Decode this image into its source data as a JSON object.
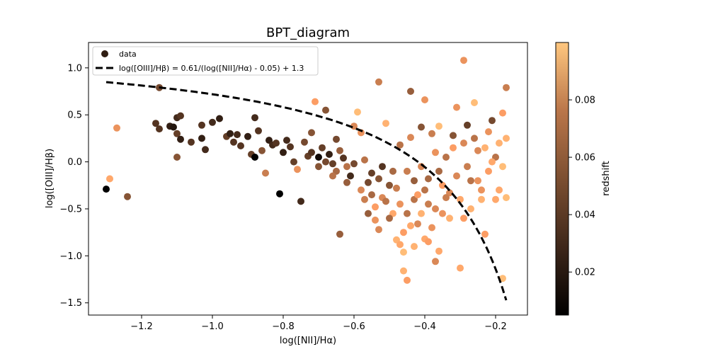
{
  "chart_data": {
    "type": "scatter",
    "title": "BPT_diagram",
    "xlabel": "log([NII]/Hα)",
    "ylabel": "log([OIII]/Hβ)",
    "xlim": [
      -1.35,
      -0.11
    ],
    "ylim": [
      -1.63,
      1.27
    ],
    "xticks": [
      -1.2,
      -1.0,
      -0.8,
      -0.6,
      -0.4,
      -0.2
    ],
    "xtick_labels": [
      "−1.2",
      "−1.0",
      "−0.8",
      "−0.6",
      "−0.4",
      "−0.2"
    ],
    "yticks": [
      -1.5,
      -1.0,
      -0.5,
      0.0,
      0.5,
      1.0
    ],
    "ytick_labels": [
      "−1.5",
      "−1.0",
      "−0.5",
      "0.0",
      "0.5",
      "1.0"
    ],
    "colorbar": {
      "label": "redshift",
      "colormap": "copper",
      "range": [
        0.005,
        0.1
      ],
      "ticks": [
        0.02,
        0.04,
        0.06,
        0.08
      ],
      "tick_labels": [
        "0.02",
        "0.04",
        "0.06",
        "0.08"
      ]
    },
    "legend": {
      "placement": "upper-left",
      "entries": [
        {
          "label": "data",
          "kind": "marker"
        },
        {
          "label": "log([OIII]/Hβ) = 0.61/(log([NII]/Hα) - 0.05) + 1.3",
          "kind": "dashed-line"
        }
      ]
    },
    "curve": {
      "label": "log([OIII]/Hβ) = 0.61/(log([NII]/Hα) - 0.05) + 1.3",
      "style": "dashed",
      "color": "#000000",
      "x_start": -1.3,
      "x_end": -0.17,
      "equation": {
        "a": 0.61,
        "b": 0.05,
        "c": 1.3
      }
    },
    "series": [
      {
        "name": "data",
        "points": [
          [
            -1.3,
            -0.29,
            0.005
          ],
          [
            -1.29,
            -0.18,
            0.085
          ],
          [
            -1.27,
            0.36,
            0.075
          ],
          [
            -1.24,
            -0.37,
            0.045
          ],
          [
            -1.16,
            0.41,
            0.03
          ],
          [
            -1.15,
            0.79,
            0.04
          ],
          [
            -1.15,
            0.35,
            0.03
          ],
          [
            -1.12,
            0.38,
            0.02
          ],
          [
            -1.11,
            0.37,
            0.015
          ],
          [
            -1.1,
            0.3,
            0.035
          ],
          [
            -1.1,
            0.47,
            0.025
          ],
          [
            -1.09,
            0.49,
            0.03
          ],
          [
            -1.09,
            0.24,
            0.02
          ],
          [
            -1.1,
            0.05,
            0.045
          ],
          [
            -1.06,
            0.21,
            0.03
          ],
          [
            -1.03,
            0.39,
            0.03
          ],
          [
            -1.03,
            0.25,
            0.02
          ],
          [
            -1.02,
            0.13,
            0.025
          ],
          [
            -1.0,
            0.42,
            0.025
          ],
          [
            -0.98,
            0.46,
            0.02
          ],
          [
            -0.96,
            0.27,
            0.035
          ],
          [
            -0.95,
            0.3,
            0.02
          ],
          [
            -0.94,
            0.21,
            0.03
          ],
          [
            -0.93,
            0.29,
            0.025
          ],
          [
            -0.92,
            0.17,
            0.03
          ],
          [
            -0.9,
            0.27,
            0.02
          ],
          [
            -0.89,
            0.08,
            0.035
          ],
          [
            -0.88,
            0.47,
            0.025
          ],
          [
            -0.88,
            0.05,
            0.005
          ],
          [
            -0.87,
            0.33,
            0.03
          ],
          [
            -0.86,
            0.12,
            0.045
          ],
          [
            -0.85,
            -0.12,
            0.065
          ],
          [
            -0.84,
            0.23,
            0.02
          ],
          [
            -0.83,
            0.18,
            0.025
          ],
          [
            -0.82,
            0.2,
            0.03
          ],
          [
            -0.81,
            -0.34,
            0.005
          ],
          [
            -0.8,
            0.1,
            0.02
          ],
          [
            -0.79,
            0.23,
            0.025
          ],
          [
            -0.78,
            0.16,
            0.03
          ],
          [
            -0.77,
            0.0,
            0.035
          ],
          [
            -0.76,
            -0.08,
            0.075
          ],
          [
            -0.75,
            -0.42,
            0.025
          ],
          [
            -0.74,
            0.21,
            0.04
          ],
          [
            -0.73,
            0.06,
            0.035
          ],
          [
            -0.72,
            0.31,
            0.045
          ],
          [
            -0.71,
            0.64,
            0.08
          ],
          [
            -0.7,
            0.05,
            0.01
          ],
          [
            -0.69,
            0.15,
            0.035
          ],
          [
            -0.68,
            0.55,
            0.045
          ],
          [
            -0.67,
            0.08,
            0.02
          ],
          [
            -0.66,
            -0.02,
            0.035
          ],
          [
            -0.65,
            0.24,
            0.04
          ],
          [
            -0.64,
            0.12,
            0.05
          ],
          [
            -0.64,
            -0.77,
            0.05
          ],
          [
            -0.63,
            0.04,
            0.03
          ],
          [
            -0.62,
            -0.05,
            0.06
          ],
          [
            -0.61,
            -0.15,
            0.025
          ],
          [
            -0.6,
            0.38,
            0.07
          ],
          [
            -0.59,
            0.53,
            0.095
          ],
          [
            -0.58,
            0.31,
            0.075
          ],
          [
            -0.57,
            0.02,
            0.06
          ],
          [
            -0.56,
            -0.22,
            0.04
          ],
          [
            -0.55,
            -0.35,
            0.055
          ],
          [
            -0.54,
            -0.48,
            0.08
          ],
          [
            -0.53,
            0.85,
            0.065
          ],
          [
            -0.53,
            -0.72,
            0.07
          ],
          [
            -0.52,
            -0.05,
            0.03
          ],
          [
            -0.51,
            0.41,
            0.09
          ],
          [
            -0.5,
            -0.25,
            0.045
          ],
          [
            -0.49,
            -0.55,
            0.085
          ],
          [
            -0.48,
            -0.83,
            0.09
          ],
          [
            -0.47,
            0.18,
            0.06
          ],
          [
            -0.46,
            -0.96,
            0.095
          ],
          [
            -0.46,
            -1.16,
            0.09
          ],
          [
            -0.45,
            -1.26,
            0.08
          ],
          [
            -0.44,
            0.75,
            0.05
          ],
          [
            -0.44,
            0.26,
            0.07
          ],
          [
            -0.43,
            -0.4,
            0.06
          ],
          [
            -0.42,
            -0.66,
            0.07
          ],
          [
            -0.41,
            0.37,
            0.045
          ],
          [
            -0.4,
            0.66,
            0.075
          ],
          [
            -0.4,
            -0.82,
            0.085
          ],
          [
            -0.39,
            -0.18,
            0.055
          ],
          [
            -0.38,
            0.3,
            0.065
          ],
          [
            -0.37,
            -1.06,
            0.07
          ],
          [
            -0.36,
            0.38,
            0.095
          ],
          [
            -0.36,
            -0.95,
            0.085
          ],
          [
            -0.35,
            -0.55,
            0.075
          ],
          [
            -0.34,
            0.05,
            0.06
          ],
          [
            -0.33,
            -0.33,
            0.07
          ],
          [
            -0.32,
            0.28,
            0.045
          ],
          [
            -0.31,
            0.58,
            0.075
          ],
          [
            -0.3,
            -1.13,
            0.085
          ],
          [
            -0.29,
            1.08,
            0.075
          ],
          [
            -0.29,
            -0.6,
            0.08
          ],
          [
            -0.28,
            0.39,
            0.035
          ],
          [
            -0.27,
            -0.2,
            0.06
          ],
          [
            -0.26,
            0.63,
            0.095
          ],
          [
            -0.25,
            0.12,
            0.07
          ],
          [
            -0.24,
            -0.4,
            0.09
          ],
          [
            -0.23,
            -0.77,
            0.08
          ],
          [
            -0.22,
            0.32,
            0.075
          ],
          [
            -0.21,
            0.44,
            0.04
          ],
          [
            -0.2,
            0.05,
            0.06
          ],
          [
            -0.19,
            -0.3,
            0.085
          ],
          [
            -0.18,
            0.52,
            0.08
          ],
          [
            -0.18,
            -1.24,
            0.095
          ],
          [
            -0.17,
            0.79,
            0.065
          ],
          [
            -0.17,
            0.25,
            0.09
          ],
          [
            -0.17,
            -0.38,
            0.095
          ],
          [
            -0.56,
            -0.55,
            0.05
          ],
          [
            -0.52,
            -0.38,
            0.07
          ],
          [
            -0.48,
            -0.28,
            0.065
          ],
          [
            -0.45,
            -0.55,
            0.06
          ],
          [
            -0.42,
            -0.35,
            0.08
          ],
          [
            -0.5,
            -0.6,
            0.055
          ],
          [
            -0.47,
            -0.45,
            0.075
          ],
          [
            -0.43,
            -0.2,
            0.05
          ],
          [
            -0.39,
            -0.45,
            0.065
          ],
          [
            -0.55,
            -0.12,
            0.035
          ],
          [
            -0.6,
            -0.02,
            0.04
          ],
          [
            -0.58,
            -0.3,
            0.07
          ],
          [
            -0.53,
            -0.18,
            0.045
          ],
          [
            -0.49,
            -0.1,
            0.055
          ],
          [
            -0.44,
            -0.68,
            0.085
          ],
          [
            -0.41,
            -0.55,
            0.09
          ],
          [
            -0.38,
            -0.7,
            0.075
          ],
          [
            -0.35,
            -0.25,
            0.08
          ],
          [
            -0.46,
            -0.75,
            0.08
          ],
          [
            -0.51,
            -0.42,
            0.06
          ],
          [
            -0.4,
            -0.3,
            0.06
          ],
          [
            -0.37,
            -0.5,
            0.07
          ],
          [
            -0.33,
            -0.6,
            0.09
          ],
          [
            -0.3,
            -0.4,
            0.085
          ],
          [
            -0.27,
            -0.5,
            0.09
          ],
          [
            -0.25,
            -0.2,
            0.075
          ],
          [
            -0.22,
            -0.1,
            0.08
          ],
          [
            -0.2,
            -0.4,
            0.085
          ],
          [
            -0.28,
            -0.05,
            0.065
          ],
          [
            -0.31,
            -0.15,
            0.07
          ],
          [
            -0.34,
            -0.38,
            0.065
          ],
          [
            -0.36,
            -0.1,
            0.055
          ],
          [
            -0.62,
            -0.22,
            0.05
          ],
          [
            -0.65,
            -0.1,
            0.055
          ],
          [
            -0.68,
            0.0,
            0.04
          ],
          [
            -0.7,
            -0.05,
            0.045
          ],
          [
            -0.72,
            0.1,
            0.03
          ],
          [
            -0.66,
            -0.15,
            0.06
          ],
          [
            -0.57,
            -0.4,
            0.065
          ],
          [
            -0.54,
            -0.62,
            0.075
          ],
          [
            -0.47,
            -0.88,
            0.085
          ],
          [
            -0.43,
            -0.9,
            0.09
          ],
          [
            -0.39,
            -0.85,
            0.08
          ],
          [
            -0.45,
            -0.1,
            0.065
          ],
          [
            -0.41,
            -0.05,
            0.07
          ],
          [
            -0.37,
            0.1,
            0.075
          ],
          [
            -0.32,
            0.15,
            0.08
          ],
          [
            -0.29,
            0.2,
            0.07
          ],
          [
            -0.26,
            0.25,
            0.06
          ],
          [
            -0.23,
            0.15,
            0.09
          ],
          [
            -0.21,
            0.0,
            0.085
          ],
          [
            -0.19,
            0.2,
            0.09
          ],
          [
            -0.24,
            -0.3,
            0.075
          ],
          [
            -0.18,
            -0.05,
            0.095
          ]
        ]
      }
    ]
  }
}
